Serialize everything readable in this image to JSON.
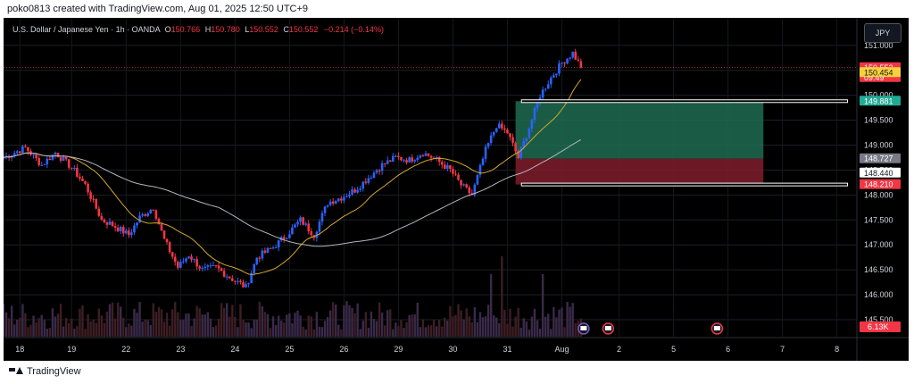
{
  "header": {
    "attribution": "poko0813 created with TradingView.com, Aug 01, 2025 12:50 UTC+9"
  },
  "legend": {
    "symbol": "U.S. Dollar / Japanese Yen · 1h · OANDA",
    "o_label": "O",
    "o_value": "150.766",
    "h_label": "H",
    "h_value": "150.780",
    "l_label": "L",
    "l_value": "150.552",
    "c_label": "C",
    "c_value": "150.552",
    "change": "−0.214 (−0.14%)"
  },
  "currency_button": "JPY",
  "footer": {
    "brand": "TradingView"
  },
  "colors": {
    "up": "#2962ff",
    "down": "#f23645",
    "ma_fast": "#d4a72c",
    "ma_slow": "#b2b5be",
    "profit_zone": "#1e6b52",
    "loss_zone": "#7f1d2b",
    "volume_up": "#3a2a4a",
    "volume_down": "#3d1e24"
  },
  "chart_data": {
    "type": "candlestick",
    "symbol": "USDJPY",
    "timeframe": "1h",
    "y_ticks": [
      "151.000",
      "150.500",
      "150.000",
      "149.500",
      "149.000",
      "148.500",
      "148.000",
      "147.500",
      "147.000",
      "146.500",
      "146.000",
      "145.500"
    ],
    "x_ticks": [
      "18",
      "19",
      "22",
      "23",
      "24",
      "25",
      "26",
      "29",
      "30",
      "31",
      "Aug",
      "2",
      "5",
      "6",
      "7",
      "8"
    ],
    "ylim": [
      145.5,
      151.3
    ],
    "price_labels": [
      {
        "value": "150.552",
        "sub": "09:49",
        "color": "#f23645"
      },
      {
        "value": "150.454",
        "color": "#f7d13b"
      },
      {
        "value": "149.881",
        "color": "#22ab94"
      },
      {
        "value": "148.727",
        "color": "#787b86"
      },
      {
        "value": "148.440",
        "color": "#ffffff"
      },
      {
        "value": "148.210",
        "color": "#f23645"
      }
    ],
    "volume_label": "6.13K",
    "position": {
      "entry": 148.727,
      "take_profit": 149.881,
      "stop_loss": 148.21
    },
    "horizontal_levels": [
      149.881,
      148.21
    ],
    "price_anchors": [
      [
        0,
        148.75
      ],
      [
        8,
        148.95
      ],
      [
        14,
        148.6
      ],
      [
        19,
        148.85
      ],
      [
        25,
        148.55
      ],
      [
        30,
        148.2
      ],
      [
        36,
        147.5
      ],
      [
        40,
        147.4
      ],
      [
        46,
        147.2
      ],
      [
        50,
        147.55
      ],
      [
        55,
        147.75
      ],
      [
        59,
        147.1
      ],
      [
        64,
        146.55
      ],
      [
        68,
        146.8
      ],
      [
        73,
        146.5
      ],
      [
        78,
        146.55
      ],
      [
        83,
        146.35
      ],
      [
        89,
        146.15
      ],
      [
        93,
        146.75
      ],
      [
        99,
        146.95
      ],
      [
        104,
        147.2
      ],
      [
        109,
        147.5
      ],
      [
        114,
        147.2
      ],
      [
        119,
        147.85
      ],
      [
        124,
        147.95
      ],
      [
        129,
        148.1
      ],
      [
        134,
        148.35
      ],
      [
        139,
        148.6
      ],
      [
        144,
        148.75
      ],
      [
        149,
        148.7
      ],
      [
        154,
        148.85
      ],
      [
        159,
        148.7
      ],
      [
        164,
        148.5
      ],
      [
        168,
        148.2
      ],
      [
        172,
        148.0
      ],
      [
        177,
        148.9
      ],
      [
        181,
        149.4
      ],
      [
        185,
        149.25
      ],
      [
        189,
        148.75
      ],
      [
        193,
        149.35
      ],
      [
        197,
        150.0
      ],
      [
        201,
        150.35
      ],
      [
        205,
        150.65
      ],
      [
        209,
        150.85
      ],
      [
        212,
        150.55
      ]
    ],
    "x_domain": [
      0,
      313
    ],
    "last_bar": 212,
    "volume_spike_bar": 183
  }
}
